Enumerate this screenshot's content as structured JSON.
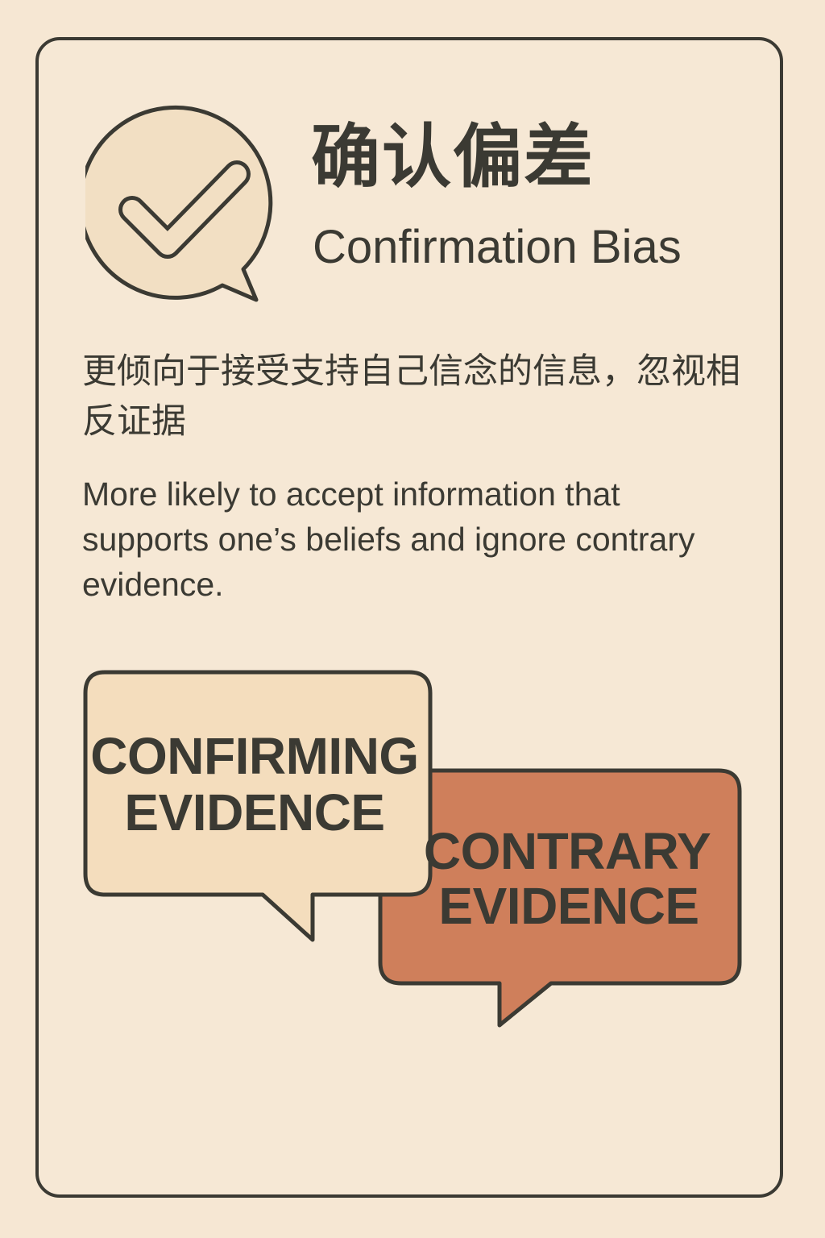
{
  "title": {
    "chinese": "确认偏差",
    "english": "Confirmation Bias"
  },
  "description": {
    "chinese": "更倾向于接受支持自己信念的信息，忽视相反证据",
    "english": "More likely to accept information that supports one’s beliefs and ignore contrary evidence."
  },
  "icon": "checkmark-speech-bubble-icon",
  "bubbles": {
    "confirming": {
      "line1": "CONFIRMING",
      "line2": "EVIDENCE",
      "color": "#f4ddbd"
    },
    "contrary": {
      "line1": "CONTRARY",
      "line2": "EVIDENCE",
      "color": "#cf7f5b"
    }
  },
  "colors": {
    "background": "#f6e7d3",
    "outline": "#3b3a33",
    "icon_fill": "#f2dfc3"
  }
}
